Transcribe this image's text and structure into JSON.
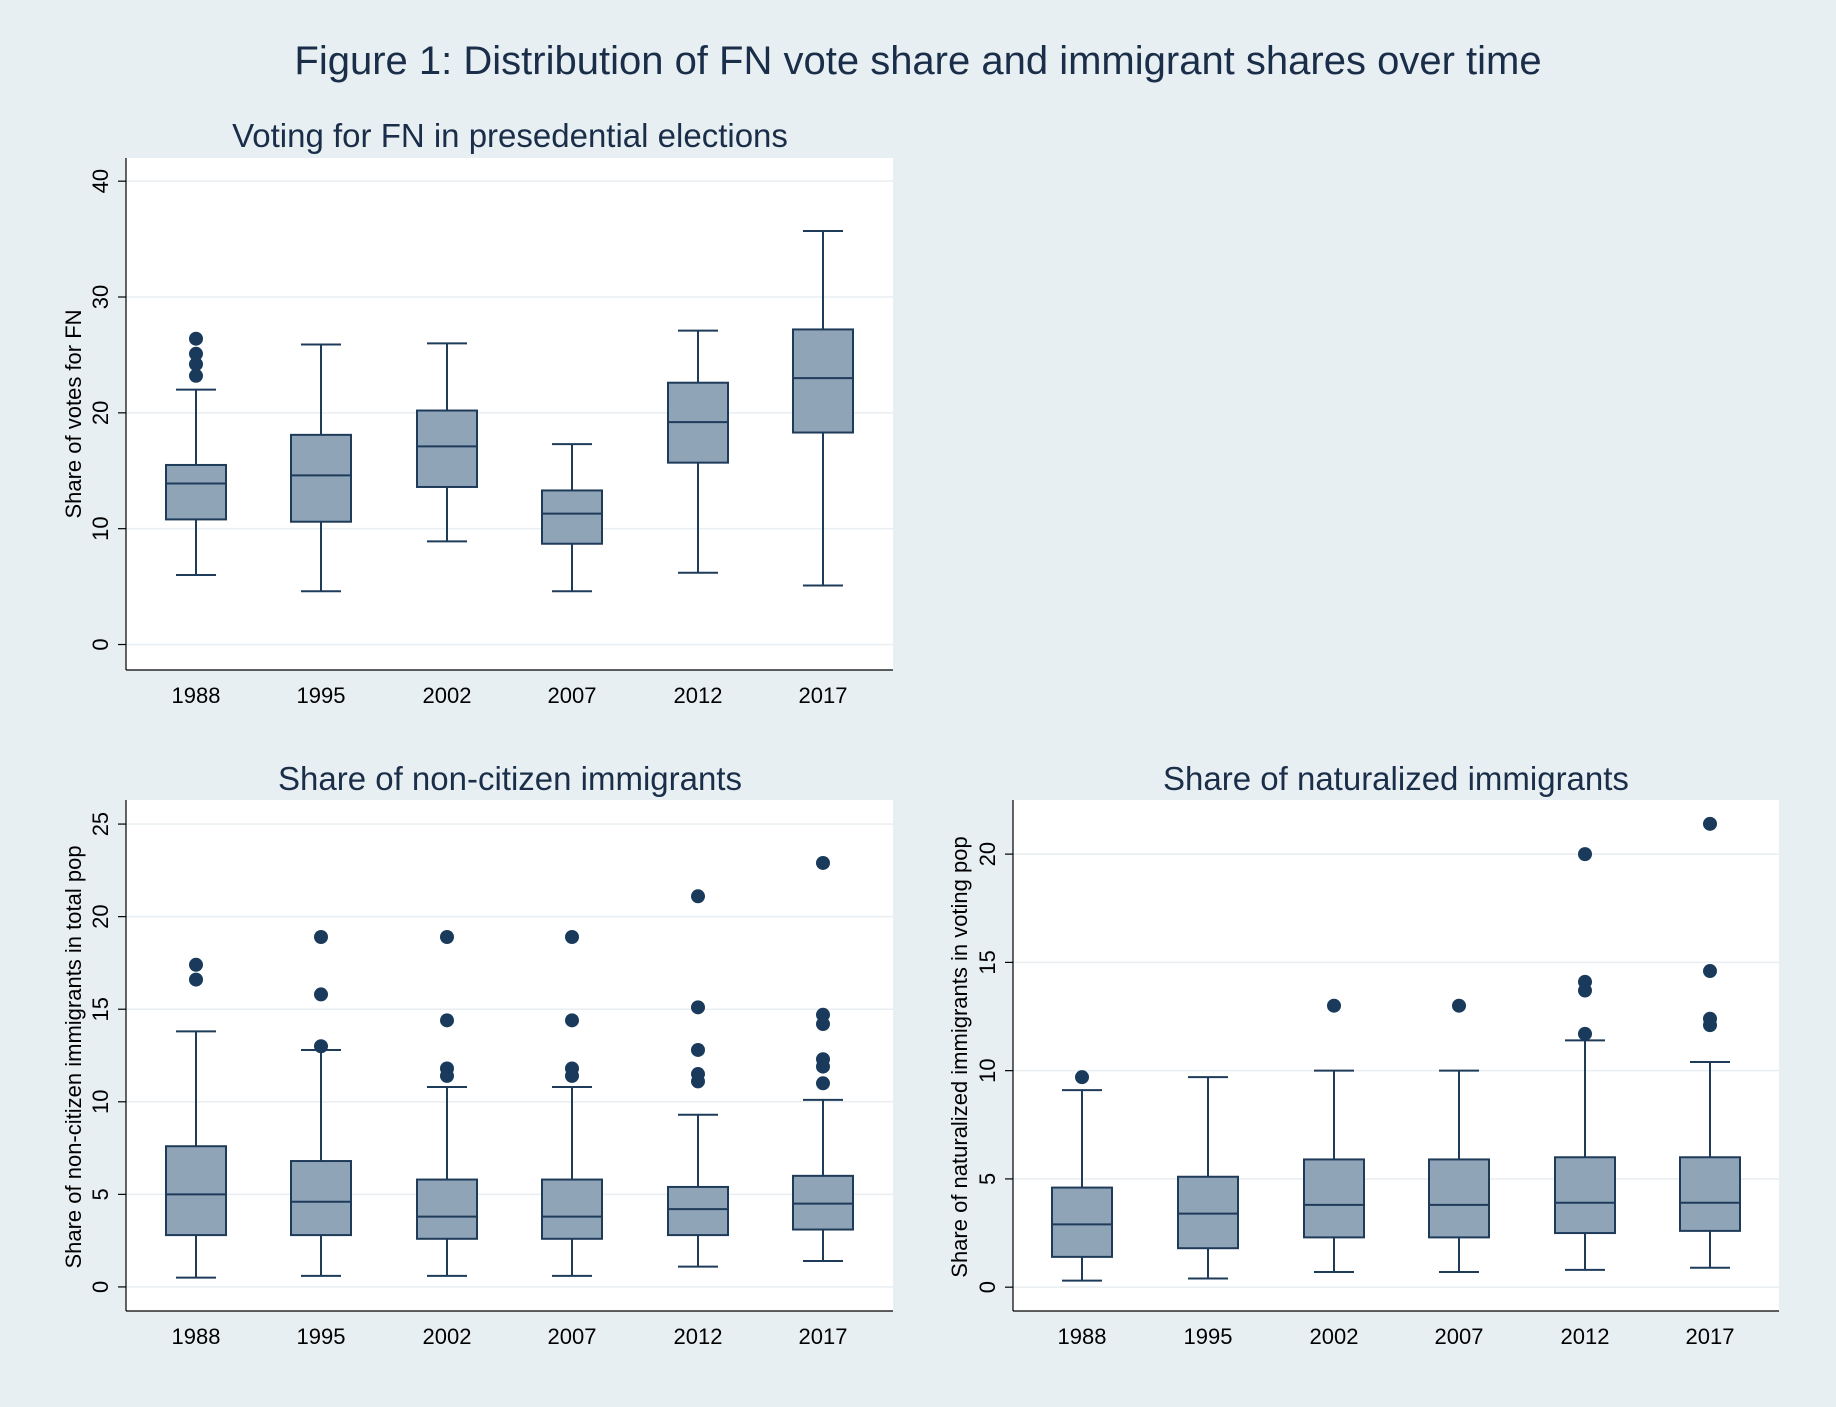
{
  "figure_title": "Figure 1: Distribution of FN vote share and immigrant shares over time",
  "colors": {
    "background": "#e8eff2",
    "plot_background": "#ffffff",
    "box_fill": "#90a4b8",
    "box_stroke": "#1f3b5a",
    "outlier": "#1a3a5c",
    "grid": "#e8eef1",
    "title": "#1a2e4a"
  },
  "chart_data": [
    {
      "type": "box",
      "title": "Voting for FN in presedential elections",
      "ylabel": "Share of votes for FN",
      "xlabel": "",
      "categories": [
        "1988",
        "1995",
        "2002",
        "2007",
        "2012",
        "2017"
      ],
      "yticks": [
        0,
        10,
        20,
        30,
        40
      ],
      "ylim": [
        -2.2,
        42
      ],
      "grid": true,
      "boxes": [
        {
          "category": "1988",
          "whisker_low": 6.0,
          "q1": 10.8,
          "median": 13.9,
          "q3": 15.5,
          "whisker_high": 22.0,
          "outliers": [
            23.2,
            24.2,
            25.1,
            26.4
          ]
        },
        {
          "category": "1995",
          "whisker_low": 4.6,
          "q1": 10.6,
          "median": 14.6,
          "q3": 18.1,
          "whisker_high": 25.9,
          "outliers": []
        },
        {
          "category": "2002",
          "whisker_low": 8.9,
          "q1": 13.6,
          "median": 17.1,
          "q3": 20.2,
          "whisker_high": 26.0,
          "outliers": []
        },
        {
          "category": "2007",
          "whisker_low": 4.6,
          "q1": 8.7,
          "median": 11.3,
          "q3": 13.3,
          "whisker_high": 17.3,
          "outliers": []
        },
        {
          "category": "2012",
          "whisker_low": 6.2,
          "q1": 15.7,
          "median": 19.2,
          "q3": 22.6,
          "whisker_high": 27.1,
          "outliers": []
        },
        {
          "category": "2017",
          "whisker_low": 5.1,
          "q1": 18.3,
          "median": 23.0,
          "q3": 27.2,
          "whisker_high": 35.7,
          "outliers": []
        }
      ]
    },
    {
      "type": "box",
      "title": "Share of non-citizen immigrants",
      "ylabel": "Share of non-citizen immigrants in total pop",
      "xlabel": "",
      "categories": [
        "1988",
        "1995",
        "2002",
        "2007",
        "2012",
        "2017"
      ],
      "yticks": [
        0,
        5,
        10,
        15,
        20,
        25
      ],
      "ylim": [
        -1.3,
        26.3
      ],
      "grid": true,
      "boxes": [
        {
          "category": "1988",
          "whisker_low": 0.5,
          "q1": 2.8,
          "median": 5.0,
          "q3": 7.6,
          "whisker_high": 13.8,
          "outliers": [
            16.6,
            17.4
          ]
        },
        {
          "category": "1995",
          "whisker_low": 0.6,
          "q1": 2.8,
          "median": 4.6,
          "q3": 6.8,
          "whisker_high": 12.8,
          "outliers": [
            13.0,
            15.8,
            18.9
          ]
        },
        {
          "category": "2002",
          "whisker_low": 0.6,
          "q1": 2.6,
          "median": 3.8,
          "q3": 5.8,
          "whisker_high": 10.8,
          "outliers": [
            11.4,
            11.8,
            14.4,
            18.9
          ]
        },
        {
          "category": "2007",
          "whisker_low": 0.6,
          "q1": 2.6,
          "median": 3.8,
          "q3": 5.8,
          "whisker_high": 10.8,
          "outliers": [
            11.4,
            11.8,
            14.4,
            18.9
          ]
        },
        {
          "category": "2012",
          "whisker_low": 1.1,
          "q1": 2.8,
          "median": 4.2,
          "q3": 5.4,
          "whisker_high": 9.3,
          "outliers": [
            11.1,
            11.5,
            12.8,
            15.1,
            21.1
          ]
        },
        {
          "category": "2017",
          "whisker_low": 1.4,
          "q1": 3.1,
          "median": 4.5,
          "q3": 6.0,
          "whisker_high": 10.1,
          "outliers": [
            11.0,
            11.9,
            12.3,
            14.2,
            14.7,
            22.9
          ]
        }
      ]
    },
    {
      "type": "box",
      "title": "Share of naturalized immigrants",
      "ylabel": "Share of naturalized immigrants in voting pop",
      "xlabel": "",
      "categories": [
        "1988",
        "1995",
        "2002",
        "2007",
        "2012",
        "2017"
      ],
      "yticks": [
        0,
        5,
        10,
        15,
        20
      ],
      "ylim": [
        -1.1,
        22.5
      ],
      "grid": true,
      "boxes": [
        {
          "category": "1988",
          "whisker_low": 0.3,
          "q1": 1.4,
          "median": 2.9,
          "q3": 4.6,
          "whisker_high": 9.1,
          "outliers": [
            9.7
          ]
        },
        {
          "category": "1995",
          "whisker_low": 0.4,
          "q1": 1.8,
          "median": 3.4,
          "q3": 5.1,
          "whisker_high": 9.7,
          "outliers": []
        },
        {
          "category": "2002",
          "whisker_low": 0.7,
          "q1": 2.3,
          "median": 3.8,
          "q3": 5.9,
          "whisker_high": 10.0,
          "outliers": [
            13.0
          ]
        },
        {
          "category": "2007",
          "whisker_low": 0.7,
          "q1": 2.3,
          "median": 3.8,
          "q3": 5.9,
          "whisker_high": 10.0,
          "outliers": [
            13.0
          ]
        },
        {
          "category": "2012",
          "whisker_low": 0.8,
          "q1": 2.5,
          "median": 3.9,
          "q3": 6.0,
          "whisker_high": 11.4,
          "outliers": [
            11.7,
            13.7,
            14.1,
            20.0
          ]
        },
        {
          "category": "2017",
          "whisker_low": 0.9,
          "q1": 2.6,
          "median": 3.9,
          "q3": 6.0,
          "whisker_high": 10.4,
          "outliers": [
            12.1,
            12.4,
            14.6,
            21.4
          ]
        }
      ]
    }
  ]
}
